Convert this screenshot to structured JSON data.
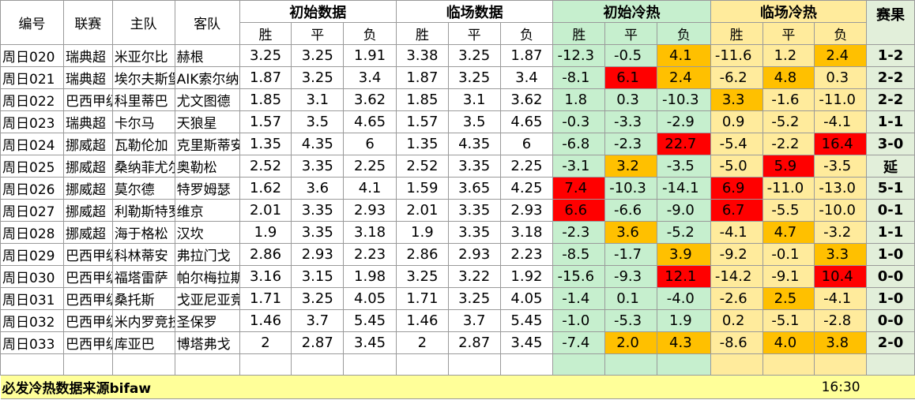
{
  "headers": {
    "id": "编号",
    "league": "联赛",
    "home": "主队",
    "away": "客队",
    "initial": "初始数据",
    "closing": "临场数据",
    "initial_heat": "初始冷热",
    "closing_heat": "临场冷热",
    "result": "赛果",
    "win": "胜",
    "draw": "平",
    "lose": "负"
  },
  "colors": {
    "green": "#c6efce",
    "yellow_header": "#ffeb9c",
    "orange": "#ffc000",
    "red": "#ff0000",
    "light_yellow": "#ffff99",
    "result_bg": "#e2efda"
  },
  "rows": [
    {
      "id": "周日020",
      "league": "瑞典超",
      "home": "米亚尔比",
      "away": "赫根",
      "init": [
        "3.25",
        "3.25",
        "1.91"
      ],
      "close": [
        "3.38",
        "3.25",
        "1.87"
      ],
      "ih": [
        "-12.3",
        "-0.5",
        "4.1"
      ],
      "ihc": [
        "g",
        "g",
        "o"
      ],
      "ch": [
        "-11.6",
        "1.2",
        "2.4"
      ],
      "chc": [
        "y",
        "y",
        "o"
      ],
      "result": "1-2"
    },
    {
      "id": "周日021",
      "league": "瑞典超",
      "home": "埃尔夫斯堡",
      "away": "AIK索尔纳",
      "init": [
        "1.87",
        "3.25",
        "3.4"
      ],
      "close": [
        "1.87",
        "3.25",
        "3.4"
      ],
      "ih": [
        "-8.1",
        "6.1",
        "2.4"
      ],
      "ihc": [
        "g",
        "r",
        "o"
      ],
      "ch": [
        "-6.2",
        "4.8",
        "0.3"
      ],
      "chc": [
        "y",
        "o",
        "y"
      ],
      "result": "2-2"
    },
    {
      "id": "周日022",
      "league": "巴西甲级",
      "home": "科里蒂巴",
      "away": "尤文图德",
      "init": [
        "1.85",
        "3.1",
        "3.62"
      ],
      "close": [
        "1.85",
        "3.1",
        "3.62"
      ],
      "ih": [
        "1.8",
        "0.3",
        "-10.3"
      ],
      "ihc": [
        "g",
        "g",
        "g"
      ],
      "ch": [
        "3.3",
        "-1.6",
        "-11.0"
      ],
      "chc": [
        "o",
        "y",
        "y"
      ],
      "result": "2-2"
    },
    {
      "id": "周日023",
      "league": "瑞典超",
      "home": "卡尔马",
      "away": "天狼星",
      "init": [
        "1.57",
        "3.5",
        "4.65"
      ],
      "close": [
        "1.57",
        "3.5",
        "4.65"
      ],
      "ih": [
        "-0.3",
        "-3.3",
        "-2.9"
      ],
      "ihc": [
        "g",
        "g",
        "g"
      ],
      "ch": [
        "0.9",
        "-5.2",
        "-4.1"
      ],
      "chc": [
        "y",
        "y",
        "y"
      ],
      "result": "1-1"
    },
    {
      "id": "周日024",
      "league": "挪威超",
      "home": "瓦勒伦加",
      "away": "克里斯蒂安松",
      "init": [
        "1.35",
        "4.35",
        "6"
      ],
      "close": [
        "1.35",
        "4.35",
        "6"
      ],
      "ih": [
        "-6.8",
        "-2.3",
        "22.7"
      ],
      "ihc": [
        "g",
        "g",
        "r"
      ],
      "ch": [
        "-5.4",
        "-2.2",
        "16.4"
      ],
      "chc": [
        "y",
        "y",
        "r"
      ],
      "result": "3-0"
    },
    {
      "id": "周日025",
      "league": "挪威超",
      "home": "桑纳菲尤尔",
      "away": "奥勒松",
      "init": [
        "2.52",
        "3.35",
        "2.25"
      ],
      "close": [
        "2.52",
        "3.35",
        "2.25"
      ],
      "ih": [
        "-3.1",
        "3.2",
        "-3.5"
      ],
      "ihc": [
        "g",
        "o",
        "g"
      ],
      "ch": [
        "-5.0",
        "5.9",
        "-3.5"
      ],
      "chc": [
        "y",
        "r",
        "y"
      ],
      "result": "延"
    },
    {
      "id": "周日026",
      "league": "挪威超",
      "home": "莫尔德",
      "away": "特罗姆瑟",
      "init": [
        "1.62",
        "3.6",
        "4.1"
      ],
      "close": [
        "1.59",
        "3.65",
        "4.25"
      ],
      "ih": [
        "7.4",
        "-10.3",
        "-14.1"
      ],
      "ihc": [
        "r",
        "g",
        "g"
      ],
      "ch": [
        "6.9",
        "-11.0",
        "-13.0"
      ],
      "chc": [
        "r",
        "y",
        "y"
      ],
      "result": "5-1"
    },
    {
      "id": "周日027",
      "league": "挪威超",
      "home": "利勒斯特罗姆",
      "away": "维京",
      "init": [
        "2.01",
        "3.35",
        "2.93"
      ],
      "close": [
        "2.01",
        "3.35",
        "2.93"
      ],
      "ih": [
        "6.6",
        "-6.6",
        "-9.0"
      ],
      "ihc": [
        "r",
        "g",
        "g"
      ],
      "ch": [
        "6.7",
        "-5.5",
        "-10.0"
      ],
      "chc": [
        "r",
        "y",
        "y"
      ],
      "result": "0-1"
    },
    {
      "id": "周日028",
      "league": "挪威超",
      "home": "海于格松",
      "away": "汉坎",
      "init": [
        "1.9",
        "3.35",
        "3.18"
      ],
      "close": [
        "1.9",
        "3.35",
        "3.18"
      ],
      "ih": [
        "-2.3",
        "3.6",
        "-5.2"
      ],
      "ihc": [
        "g",
        "o",
        "g"
      ],
      "ch": [
        "-4.1",
        "4.7",
        "-3.2"
      ],
      "chc": [
        "y",
        "o",
        "y"
      ],
      "result": "1-1"
    },
    {
      "id": "周日029",
      "league": "巴西甲级",
      "home": "科林蒂安",
      "away": "弗拉门戈",
      "init": [
        "2.86",
        "2.93",
        "2.23"
      ],
      "close": [
        "2.86",
        "2.93",
        "2.23"
      ],
      "ih": [
        "-8.5",
        "-1.7",
        "3.9"
      ],
      "ihc": [
        "g",
        "g",
        "o"
      ],
      "ch": [
        "-9.2",
        "-0.1",
        "3.3"
      ],
      "chc": [
        "y",
        "y",
        "o"
      ],
      "result": "1-0"
    },
    {
      "id": "周日030",
      "league": "巴西甲级",
      "home": "福塔雷萨",
      "away": "帕尔梅拉斯",
      "init": [
        "3.16",
        "3.15",
        "1.98"
      ],
      "close": [
        "3.25",
        "3.22",
        "1.92"
      ],
      "ih": [
        "-15.6",
        "-9.3",
        "12.1"
      ],
      "ihc": [
        "g",
        "g",
        "r"
      ],
      "ch": [
        "-14.2",
        "-9.1",
        "10.4"
      ],
      "chc": [
        "y",
        "y",
        "r"
      ],
      "result": "0-0"
    },
    {
      "id": "周日031",
      "league": "巴西甲级",
      "home": "桑托斯",
      "away": "戈亚尼亚竞技",
      "init": [
        "1.71",
        "3.25",
        "4.05"
      ],
      "close": [
        "1.71",
        "3.25",
        "4.05"
      ],
      "ih": [
        "-1.4",
        "0.1",
        "-4.0"
      ],
      "ihc": [
        "g",
        "g",
        "g"
      ],
      "ch": [
        "-2.6",
        "2.5",
        "-4.1"
      ],
      "chc": [
        "y",
        "o",
        "y"
      ],
      "result": "1-0"
    },
    {
      "id": "周日032",
      "league": "巴西甲级",
      "home": "米内罗竞技",
      "away": "圣保罗",
      "init": [
        "1.46",
        "3.7",
        "5.45"
      ],
      "close": [
        "1.46",
        "3.7",
        "5.45"
      ],
      "ih": [
        "-1.0",
        "-5.3",
        "1.9"
      ],
      "ihc": [
        "g",
        "g",
        "g"
      ],
      "ch": [
        "0.2",
        "-5.1",
        "-2.8"
      ],
      "chc": [
        "y",
        "y",
        "y"
      ],
      "result": "0-0"
    },
    {
      "id": "周日033",
      "league": "巴西甲级",
      "home": "库亚巴",
      "away": "博塔弗戈",
      "init": [
        "2",
        "2.87",
        "3.45"
      ],
      "close": [
        "2",
        "2.87",
        "3.45"
      ],
      "ih": [
        "-7.4",
        "2.0",
        "4.3"
      ],
      "ihc": [
        "g",
        "o",
        "o"
      ],
      "ch": [
        "-8.6",
        "4.0",
        "3.8"
      ],
      "chc": [
        "y",
        "o",
        "o"
      ],
      "result": "2-0"
    }
  ],
  "footer": {
    "source": "必发冷热数据来源bifaw",
    "time": "16:30"
  }
}
